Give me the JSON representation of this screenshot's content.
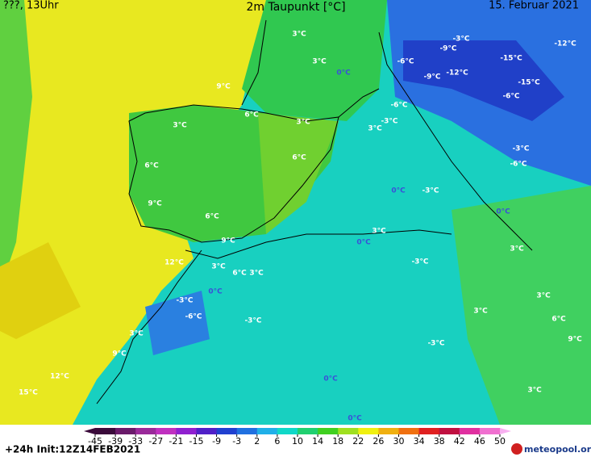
{
  "header": {
    "left": "???, 13Uhr",
    "title": "2m Taupunkt [°C]",
    "date": "15. Februar 2021"
  },
  "map": {
    "labels": [
      "3°C",
      "3°C",
      "0°C",
      "-3°C",
      "-9°C",
      "-6°C",
      "-12°C",
      "-15°C",
      "-9°C",
      "-12°C",
      "-15°C",
      "-6°C",
      "-6°C",
      "9°C",
      "6°C",
      "3°C",
      "3°C",
      "-3°C",
      "3°C",
      "6°C",
      "6°C",
      "-3°C",
      "-6°C",
      "0°C",
      "-3°C",
      "9°C",
      "6°C",
      "0°C",
      "3°C",
      "9°C",
      "0°C",
      "3°C",
      "12°C",
      "3°C",
      "-3°C",
      "6°C",
      "3°C",
      "0°C",
      "-3°C",
      "3°C",
      "3°C",
      "-6°C",
      "-3°C",
      "6°C",
      "3°C",
      "9°C",
      "-3°C",
      "9°C",
      "12°C",
      "0°C",
      "15°C",
      "3°C",
      "0°C"
    ]
  },
  "legend": {
    "ticks": [
      -45,
      -39,
      -33,
      -27,
      -21,
      -15,
      -9,
      -3,
      2,
      6,
      10,
      14,
      18,
      22,
      26,
      30,
      34,
      38,
      42,
      46,
      50
    ],
    "colors": [
      "#3a0a3a",
      "#6a1a6a",
      "#9a2a9a",
      "#c030c0",
      "#9020d0",
      "#5020c8",
      "#2040d0",
      "#2070e0",
      "#20b0e8",
      "#10d8c8",
      "#20d070",
      "#40d020",
      "#a0e020",
      "#f0f010",
      "#f0b010",
      "#f07010",
      "#e02020",
      "#c01040",
      "#e030a0",
      "#f070d0",
      "#f8b0f0"
    ]
  },
  "footer": {
    "init": "+24h Init:12Z14FEB2021",
    "brand": "meteopool.org"
  }
}
